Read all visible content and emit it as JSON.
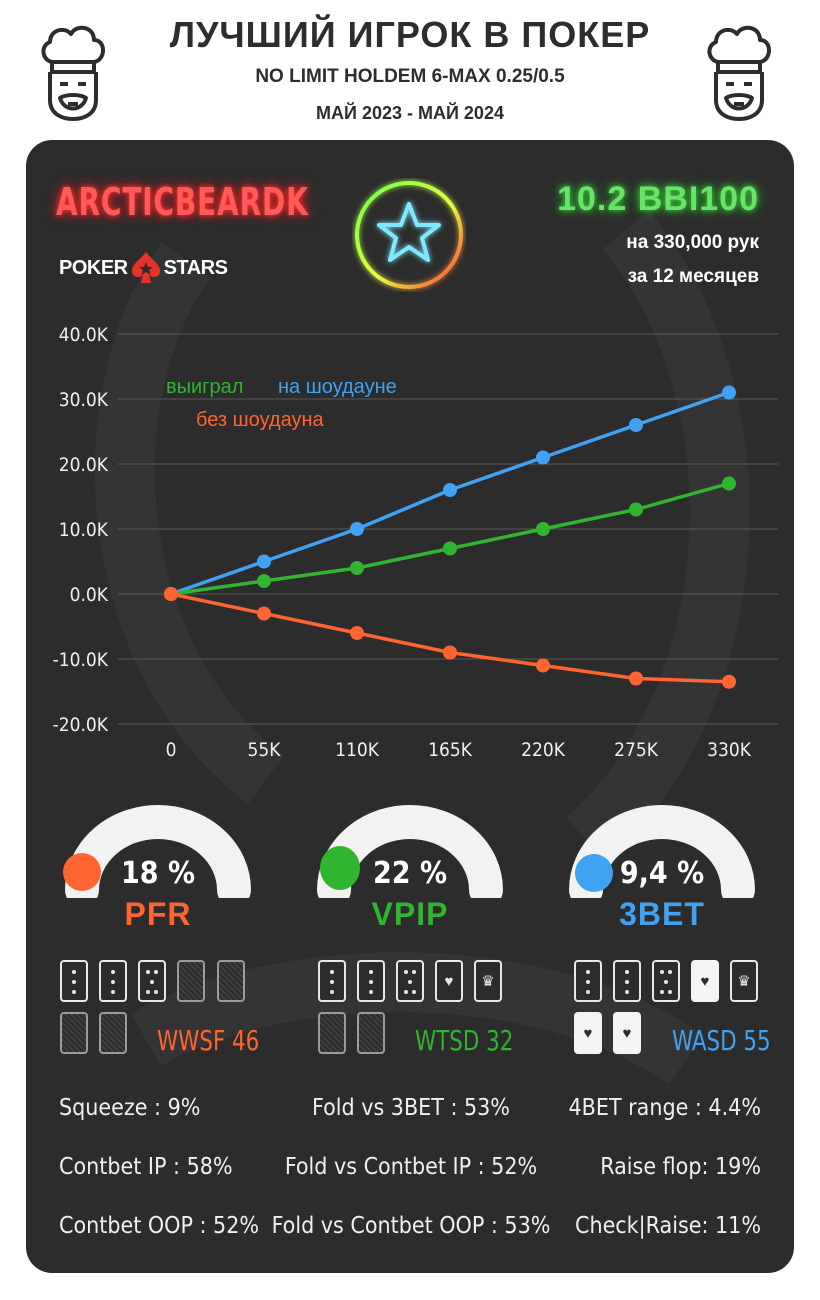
{
  "header": {
    "title": "ЛУЧШИЙ ИГРОК В ПОКЕР",
    "subtitle": "NO LIMIT HOLDEM 6-MAX 0.25/0.5",
    "period": "МАЙ 2023 - МАЙ 2024"
  },
  "player": {
    "name": "ARCTICBEARDK",
    "site_left": "POKER",
    "site_right": "STARS",
    "winrate": "10.2 BBI100",
    "hands": "на 330,000 рук",
    "months": "за  12 месяцев"
  },
  "colors": {
    "showdown": "#3fa2f2",
    "won": "#2fb52f",
    "no_showdown": "#ff6431",
    "panel": "#2c2c2c"
  },
  "chart_data": {
    "type": "line",
    "x": [
      "0",
      "55K",
      "110K",
      "165K",
      "220K",
      "275K",
      "330K"
    ],
    "yticks": [
      "40.0K",
      "30.0K",
      "20.0K",
      "10.0K",
      "0.0K",
      "-10.0K",
      "-20.0K"
    ],
    "ylim": [
      -20000,
      40000
    ],
    "grid": true,
    "series": [
      {
        "name": "на шоудауне",
        "color": "#3fa2f2",
        "values": [
          0,
          5000,
          10000,
          16000,
          21000,
          26000,
          31000
        ]
      },
      {
        "name": "выиграл",
        "color": "#2fb52f",
        "values": [
          0,
          2000,
          4000,
          7000,
          10000,
          13000,
          17000
        ]
      },
      {
        "name": "без шоудауна",
        "color": "#ff6431",
        "values": [
          0,
          -3000,
          -6000,
          -9000,
          -11000,
          -13000,
          -13500
        ]
      }
    ],
    "legend": [
      "выиграл",
      "на шоудауне",
      "без шоудауна"
    ]
  },
  "gauges": [
    {
      "value": "18 %",
      "name": "PFR",
      "color": "#ff6431",
      "fraction": 0.0
    },
    {
      "value": "22 %",
      "name": "VPIP",
      "color": "#2fb52f",
      "fraction": 0.0
    },
    {
      "value": "9,4 %",
      "name": "3BET",
      "color": "#3fa2f2",
      "fraction": 0.0
    }
  ],
  "card_metrics": [
    {
      "label": "WWSF 46",
      "color": "#ff6431"
    },
    {
      "label": "WTSD 32",
      "color": "#2fb52f"
    },
    {
      "label": "WASD 55",
      "color": "#3fa2f2"
    }
  ],
  "stats": {
    "left": [
      "Squeeze : 9%",
      "Contbet IP : 58%",
      "Contbet OOP : 52%"
    ],
    "center": [
      "Fold vs 3BET : 53%",
      "Fold vs Contbet IP : 52%",
      "Fold vs Contbet OOP : 53%"
    ],
    "right": [
      "4BET range : 4.4%",
      "Raise flop: 19%",
      "Check|Raise: 11%"
    ]
  },
  "icons": [
    "chef-icon",
    "pokerstars-spade-icon",
    "star-icon",
    "card-icon",
    "heart-icon",
    "crown-icon"
  ]
}
